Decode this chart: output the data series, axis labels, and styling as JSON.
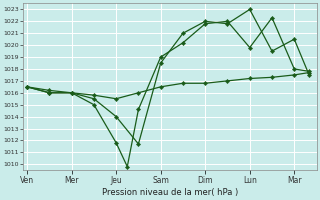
{
  "title": "",
  "xlabel": "Pression niveau de la mer( hPa )",
  "bg_color": "#caecea",
  "grid_color": "#b0d8d4",
  "line_color": "#1a5c1a",
  "marker_color": "#1a5c1a",
  "ylim": [
    1009.5,
    1023.5
  ],
  "xlim": [
    -2,
    156
  ],
  "yticks": [
    1010,
    1011,
    1012,
    1013,
    1014,
    1015,
    1016,
    1017,
    1018,
    1019,
    1020,
    1021,
    1022,
    1023
  ],
  "day_labels": [
    "Ven",
    "Mer",
    "Jeu",
    "Sam",
    "Dim",
    "Lun",
    "Mar"
  ],
  "day_positions": [
    0,
    24,
    48,
    72,
    96,
    120,
    144
  ],
  "series": [
    {
      "x": [
        0,
        12,
        24,
        36,
        48,
        60,
        72,
        84,
        96,
        108,
        120,
        132,
        144,
        152
      ],
      "y": [
        1016.5,
        1016.0,
        1016.0,
        1015.5,
        1014.0,
        1011.7,
        1018.5,
        1021.0,
        1022.0,
        1021.8,
        1023.0,
        1019.5,
        1020.5,
        1017.5
      ]
    },
    {
      "x": [
        0,
        12,
        24,
        36,
        48,
        54,
        60,
        72,
        84,
        96,
        108,
        120,
        132,
        144,
        152
      ],
      "y": [
        1016.5,
        1016.0,
        1016.0,
        1015.0,
        1011.8,
        1009.8,
        1014.6,
        1019.0,
        1020.2,
        1021.8,
        1022.0,
        1019.8,
        1022.3,
        1018.0,
        1017.8
      ]
    },
    {
      "x": [
        0,
        12,
        24,
        36,
        48,
        60,
        72,
        84,
        96,
        108,
        120,
        132,
        144,
        152
      ],
      "y": [
        1016.5,
        1016.2,
        1016.0,
        1015.8,
        1015.5,
        1016.0,
        1016.5,
        1016.8,
        1016.8,
        1017.0,
        1017.2,
        1017.3,
        1017.5,
        1017.7
      ]
    }
  ]
}
